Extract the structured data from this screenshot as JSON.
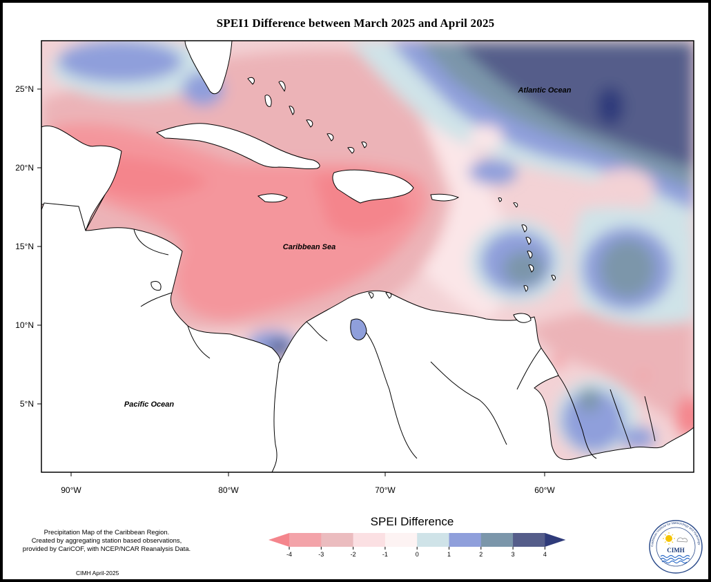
{
  "title": "SPEI1 Difference between March 2025 and April 2025",
  "map": {
    "region": "Caribbean",
    "labels": {
      "atlantic": "Atlantic Ocean",
      "caribbean": "Caribbean Sea",
      "pacific": "Pacific Ocean"
    },
    "lat_ticks": [
      "25°N",
      "20°N",
      "15°N",
      "10°N",
      "5°N"
    ],
    "lon_ticks": [
      "90°W",
      "80°W",
      "70°W",
      "60°W"
    ]
  },
  "legend": {
    "title": "SPEI Difference",
    "ticks": [
      "-4",
      "-3",
      "-2",
      "-1",
      "0",
      "1",
      "2",
      "3",
      "4"
    ],
    "colors": [
      "#f4858c",
      "#f3a3a9",
      "#ebbcbf",
      "#fbe0e3",
      "#fdf3f3",
      "#cfe3e8",
      "#8f9fdb",
      "#7b96aa",
      "#555d8a"
    ],
    "low_arrow_color": "#f4858c",
    "high_arrow_color": "#2f3b7a"
  },
  "footnote": {
    "line1": "Precipitation Map of the Caribbean Region.",
    "line2": "Created by aggregating station based observations,",
    "line3": "provided by CariCOF, with NCEP/NCAR Reanalysis Data."
  },
  "credit": "CIMH April-2025",
  "logo": {
    "text": "CIMH",
    "ring_text": "Caribbean Institute for Meteorology and Hydrology"
  }
}
